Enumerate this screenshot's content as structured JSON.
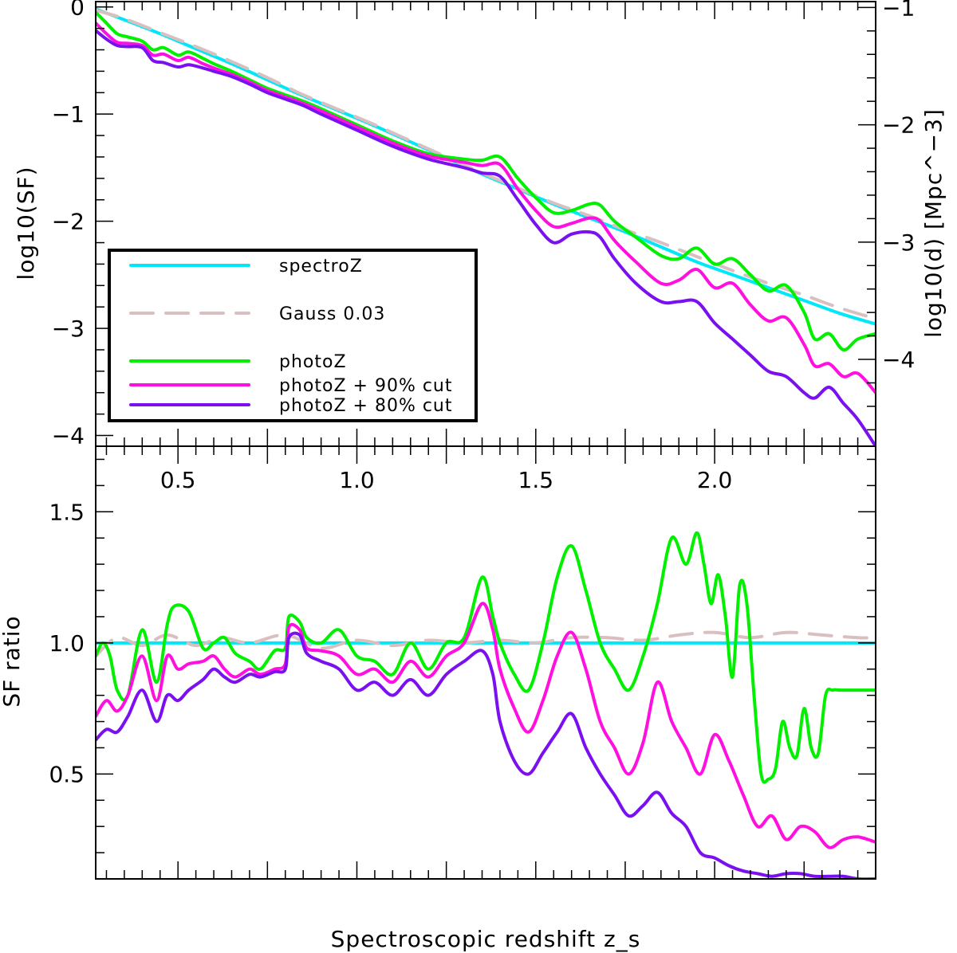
{
  "chart_data": [
    {
      "panel": "top",
      "type": "line",
      "ylabel": "log10(SF)",
      "ylabel_right": "log10(d) [Mpc^−3]",
      "xlim": [
        0.27,
        2.45
      ],
      "ylim": [
        -4.1,
        0.05
      ],
      "ylim_right": [
        -4.74,
        -0.95
      ],
      "yticks": [
        {
          "v": 0,
          "label": "0"
        },
        {
          "v": -1,
          "label": "−1"
        },
        {
          "v": -2,
          "label": "−2"
        },
        {
          "v": -3,
          "label": "−3"
        },
        {
          "v": -4,
          "label": "−4"
        }
      ],
      "yticks_right": [
        {
          "v": -1,
          "label": "−1"
        },
        {
          "v": -2,
          "label": "−2"
        },
        {
          "v": -3,
          "label": "−3"
        },
        {
          "v": -4,
          "label": "−4"
        }
      ],
      "xticks": [
        {
          "v": 0.5,
          "label": "0.5"
        },
        {
          "v": 1.0,
          "label": "1.0"
        },
        {
          "v": 1.5,
          "label": "1.5"
        },
        {
          "v": 2.0,
          "label": "2.0"
        }
      ],
      "series": [
        {
          "name": "spectroZ",
          "color": "#00e8f8",
          "dash": false,
          "x": [
            0.27,
            0.35,
            0.45,
            0.55,
            0.65,
            0.75,
            0.85,
            0.95,
            1.05,
            1.15,
            1.25,
            1.35,
            1.45,
            1.55,
            1.65,
            1.75,
            1.85,
            1.95,
            2.05,
            2.15,
            2.25,
            2.35,
            2.45
          ],
          "values": [
            -0.02,
            -0.12,
            -0.25,
            -0.39,
            -0.53,
            -0.68,
            -0.83,
            -0.97,
            -1.11,
            -1.26,
            -1.41,
            -1.56,
            -1.7,
            -1.84,
            -1.97,
            -2.1,
            -2.24,
            -2.38,
            -2.5,
            -2.62,
            -2.74,
            -2.86,
            -2.96
          ]
        },
        {
          "name": "Gauss 0.03",
          "color": "#d9bfbf",
          "dash": true,
          "x": [
            0.27,
            0.35,
            0.45,
            0.55,
            0.65,
            0.75,
            0.85,
            0.95,
            1.05,
            1.15,
            1.25,
            1.35,
            1.45,
            1.55,
            1.65,
            1.75,
            1.85,
            1.95,
            2.05,
            2.15,
            2.25,
            2.35,
            2.45
          ],
          "values": [
            -0.03,
            -0.11,
            -0.24,
            -0.37,
            -0.51,
            -0.66,
            -0.82,
            -0.96,
            -1.1,
            -1.25,
            -1.4,
            -1.55,
            -1.69,
            -1.83,
            -1.95,
            -2.08,
            -2.2,
            -2.33,
            -2.46,
            -2.58,
            -2.69,
            -2.81,
            -2.91
          ]
        },
        {
          "name": "photoZ",
          "color": "#00f000",
          "dash": false,
          "x": [
            0.27,
            0.3,
            0.33,
            0.36,
            0.4,
            0.43,
            0.46,
            0.5,
            0.53,
            0.57,
            0.6,
            0.65,
            0.7,
            0.75,
            0.8,
            0.85,
            0.9,
            1.0,
            1.1,
            1.2,
            1.3,
            1.35,
            1.4,
            1.45,
            1.5,
            1.55,
            1.6,
            1.65,
            1.68,
            1.72,
            1.78,
            1.85,
            1.9,
            1.95,
            2.0,
            2.05,
            2.1,
            2.15,
            2.2,
            2.25,
            2.28,
            2.32,
            2.36,
            2.4,
            2.45
          ],
          "values": [
            -0.05,
            -0.15,
            -0.25,
            -0.28,
            -0.32,
            -0.4,
            -0.38,
            -0.45,
            -0.42,
            -0.48,
            -0.53,
            -0.6,
            -0.68,
            -0.76,
            -0.82,
            -0.88,
            -0.95,
            -1.1,
            -1.25,
            -1.37,
            -1.42,
            -1.43,
            -1.4,
            -1.6,
            -1.78,
            -1.92,
            -1.9,
            -1.84,
            -1.85,
            -2.0,
            -2.15,
            -2.32,
            -2.35,
            -2.25,
            -2.4,
            -2.35,
            -2.5,
            -2.65,
            -2.6,
            -2.85,
            -3.1,
            -3.05,
            -3.2,
            -3.1,
            -3.05
          ]
        },
        {
          "name": "photoZ + 90% cut",
          "color": "#ff10e0",
          "dash": false,
          "x": [
            0.27,
            0.3,
            0.33,
            0.36,
            0.4,
            0.43,
            0.46,
            0.5,
            0.53,
            0.57,
            0.6,
            0.65,
            0.7,
            0.75,
            0.8,
            0.85,
            0.9,
            1.0,
            1.1,
            1.2,
            1.3,
            1.35,
            1.4,
            1.45,
            1.5,
            1.55,
            1.6,
            1.65,
            1.68,
            1.72,
            1.78,
            1.85,
            1.9,
            1.95,
            2.0,
            2.05,
            2.1,
            2.15,
            2.2,
            2.25,
            2.28,
            2.32,
            2.36,
            2.4,
            2.45
          ],
          "values": [
            -0.15,
            -0.25,
            -0.33,
            -0.34,
            -0.36,
            -0.45,
            -0.44,
            -0.5,
            -0.47,
            -0.53,
            -0.57,
            -0.63,
            -0.7,
            -0.78,
            -0.84,
            -0.9,
            -0.97,
            -1.12,
            -1.27,
            -1.39,
            -1.45,
            -1.48,
            -1.47,
            -1.7,
            -1.9,
            -2.05,
            -2.02,
            -1.97,
            -2.0,
            -2.18,
            -2.38,
            -2.58,
            -2.55,
            -2.45,
            -2.62,
            -2.58,
            -2.78,
            -2.93,
            -2.9,
            -3.15,
            -3.35,
            -3.33,
            -3.45,
            -3.42,
            -3.6
          ]
        },
        {
          "name": "photoZ + 80% cut",
          "color": "#7a10f0",
          "dash": false,
          "x": [
            0.27,
            0.3,
            0.33,
            0.36,
            0.4,
            0.43,
            0.46,
            0.5,
            0.53,
            0.57,
            0.6,
            0.65,
            0.7,
            0.75,
            0.8,
            0.85,
            0.9,
            1.0,
            1.1,
            1.2,
            1.3,
            1.35,
            1.4,
            1.45,
            1.5,
            1.55,
            1.6,
            1.65,
            1.68,
            1.72,
            1.78,
            1.85,
            1.9,
            1.95,
            2.0,
            2.05,
            2.1,
            2.15,
            2.2,
            2.25,
            2.28,
            2.32,
            2.36,
            2.4,
            2.45
          ],
          "values": [
            -0.22,
            -0.3,
            -0.36,
            -0.37,
            -0.38,
            -0.5,
            -0.52,
            -0.56,
            -0.54,
            -0.57,
            -0.6,
            -0.65,
            -0.72,
            -0.8,
            -0.86,
            -0.92,
            -1.0,
            -1.15,
            -1.3,
            -1.42,
            -1.5,
            -1.55,
            -1.58,
            -1.8,
            -2.03,
            -2.2,
            -2.12,
            -2.1,
            -2.15,
            -2.35,
            -2.58,
            -2.75,
            -2.75,
            -2.75,
            -2.95,
            -3.1,
            -3.25,
            -3.4,
            -3.45,
            -3.6,
            -3.65,
            -3.55,
            -3.7,
            -3.85,
            -4.1
          ]
        }
      ],
      "legend": {
        "placement": "bottom-left",
        "entries": [
          "spectroZ",
          "Gauss 0.03",
          "photoZ",
          "photoZ + 90% cut",
          "photoZ + 80% cut"
        ]
      }
    },
    {
      "panel": "bottom",
      "type": "line",
      "xlabel": "Spectroscopic redshift z_s",
      "ylabel": "SF ratio",
      "xlim": [
        0.27,
        2.45
      ],
      "ylim": [
        0.1,
        1.75
      ],
      "yticks": [
        {
          "v": 0.5,
          "label": "0.5"
        },
        {
          "v": 1.0,
          "label": "1.0"
        },
        {
          "v": 1.5,
          "label": "1.5"
        }
      ],
      "series": [
        {
          "name": "spectroZ",
          "color": "#00e8f8",
          "dash": false,
          "x": [
            0.27,
            2.45
          ],
          "values": [
            1.0,
            1.0
          ]
        },
        {
          "name": "Gauss 0.03",
          "color": "#d9bfbf",
          "dash": true,
          "x": [
            0.27,
            0.33,
            0.4,
            0.47,
            0.55,
            0.62,
            0.7,
            0.8,
            0.9,
            1.0,
            1.1,
            1.2,
            1.3,
            1.4,
            1.5,
            1.6,
            1.7,
            1.8,
            1.9,
            2.0,
            2.1,
            2.2,
            2.3,
            2.4,
            2.45
          ],
          "values": [
            0.95,
            1.02,
            0.99,
            1.03,
            0.99,
            1.02,
            1.0,
            1.03,
            0.98,
            1.01,
            0.99,
            1.01,
            1.0,
            1.01,
            1.0,
            1.02,
            1.02,
            1.01,
            1.03,
            1.04,
            1.02,
            1.04,
            1.03,
            1.02,
            1.02
          ]
        },
        {
          "name": "photoZ",
          "color": "#00f000",
          "dash": false,
          "x": [
            0.27,
            0.29,
            0.31,
            0.33,
            0.36,
            0.4,
            0.44,
            0.47,
            0.49,
            0.53,
            0.57,
            0.6,
            0.63,
            0.66,
            0.7,
            0.73,
            0.77,
            0.8,
            0.81,
            0.84,
            0.86,
            0.9,
            0.95,
            1.0,
            1.05,
            1.1,
            1.15,
            1.2,
            1.25,
            1.3,
            1.35,
            1.38,
            1.4,
            1.44,
            1.48,
            1.52,
            1.56,
            1.6,
            1.64,
            1.68,
            1.72,
            1.76,
            1.8,
            1.84,
            1.88,
            1.92,
            1.95,
            1.97,
            1.99,
            2.01,
            2.03,
            2.05,
            2.07,
            2.09,
            2.11,
            2.13,
            2.15,
            2.17,
            2.19,
            2.21,
            2.23,
            2.25,
            2.27,
            2.29,
            2.31,
            2.33,
            2.35,
            2.37,
            2.39,
            2.41,
            2.43,
            2.45
          ],
          "values": [
            0.95,
            1.0,
            0.95,
            0.82,
            0.8,
            1.05,
            0.85,
            1.07,
            1.14,
            1.12,
            0.98,
            1.0,
            1.02,
            0.96,
            0.93,
            0.9,
            0.97,
            0.98,
            1.1,
            1.08,
            1.02,
            1.0,
            1.05,
            0.95,
            0.93,
            0.88,
            1.0,
            0.9,
            1.0,
            1.02,
            1.25,
            1.1,
            1.0,
            0.88,
            0.82,
            1.0,
            1.25,
            1.37,
            1.2,
            1.0,
            0.9,
            0.82,
            0.95,
            1.15,
            1.4,
            1.3,
            1.42,
            1.3,
            1.15,
            1.26,
            1.1,
            0.87,
            1.22,
            1.15,
            0.8,
            0.5,
            0.48,
            0.52,
            0.7,
            0.6,
            0.57,
            0.75,
            0.6,
            0.58,
            0.8,
            0.82,
            0.82,
            0.82,
            0.82,
            0.82,
            0.82,
            0.82
          ]
        },
        {
          "name": "photoZ + 90% cut",
          "color": "#ff10e0",
          "dash": false,
          "x": [
            0.27,
            0.3,
            0.33,
            0.36,
            0.4,
            0.44,
            0.47,
            0.5,
            0.53,
            0.57,
            0.6,
            0.63,
            0.66,
            0.7,
            0.73,
            0.77,
            0.8,
            0.81,
            0.84,
            0.86,
            0.9,
            0.95,
            1.0,
            1.05,
            1.1,
            1.15,
            1.2,
            1.25,
            1.3,
            1.35,
            1.38,
            1.4,
            1.44,
            1.48,
            1.52,
            1.56,
            1.6,
            1.64,
            1.68,
            1.72,
            1.76,
            1.8,
            1.84,
            1.88,
            1.92,
            1.96,
            2.0,
            2.04,
            2.08,
            2.12,
            2.16,
            2.2,
            2.24,
            2.28,
            2.32,
            2.36,
            2.4,
            2.45
          ],
          "values": [
            0.72,
            0.78,
            0.74,
            0.8,
            0.95,
            0.78,
            0.95,
            0.9,
            0.92,
            0.93,
            0.95,
            0.9,
            0.87,
            0.9,
            0.88,
            0.9,
            0.92,
            1.06,
            1.05,
            0.98,
            0.97,
            0.95,
            0.88,
            0.9,
            0.85,
            0.93,
            0.87,
            0.95,
            1.0,
            1.15,
            1.05,
            0.9,
            0.75,
            0.66,
            0.78,
            0.95,
            1.04,
            0.9,
            0.7,
            0.6,
            0.5,
            0.62,
            0.85,
            0.7,
            0.6,
            0.5,
            0.65,
            0.55,
            0.42,
            0.3,
            0.34,
            0.25,
            0.3,
            0.28,
            0.22,
            0.25,
            0.26,
            0.24
          ]
        },
        {
          "name": "photoZ + 80% cut",
          "color": "#7a10f0",
          "dash": false,
          "x": [
            0.27,
            0.3,
            0.33,
            0.36,
            0.4,
            0.44,
            0.47,
            0.5,
            0.53,
            0.57,
            0.6,
            0.63,
            0.66,
            0.7,
            0.73,
            0.77,
            0.8,
            0.81,
            0.84,
            0.86,
            0.9,
            0.95,
            1.0,
            1.05,
            1.1,
            1.15,
            1.2,
            1.25,
            1.3,
            1.35,
            1.38,
            1.4,
            1.44,
            1.48,
            1.52,
            1.56,
            1.6,
            1.64,
            1.68,
            1.72,
            1.76,
            1.8,
            1.84,
            1.88,
            1.92,
            1.96,
            2.0,
            2.04,
            2.08,
            2.12,
            2.16,
            2.2,
            2.24,
            2.28,
            2.32,
            2.36,
            2.4,
            2.45
          ],
          "values": [
            0.63,
            0.67,
            0.66,
            0.72,
            0.82,
            0.7,
            0.8,
            0.78,
            0.82,
            0.86,
            0.9,
            0.87,
            0.85,
            0.88,
            0.87,
            0.89,
            0.9,
            1.02,
            1.03,
            0.96,
            0.93,
            0.9,
            0.82,
            0.85,
            0.8,
            0.86,
            0.8,
            0.88,
            0.93,
            0.97,
            0.88,
            0.7,
            0.55,
            0.5,
            0.58,
            0.66,
            0.73,
            0.6,
            0.5,
            0.42,
            0.34,
            0.38,
            0.43,
            0.35,
            0.3,
            0.2,
            0.18,
            0.15,
            0.13,
            0.12,
            0.11,
            0.12,
            0.12,
            0.11,
            0.11,
            0.11,
            0.1,
            0.1
          ]
        }
      ]
    }
  ]
}
